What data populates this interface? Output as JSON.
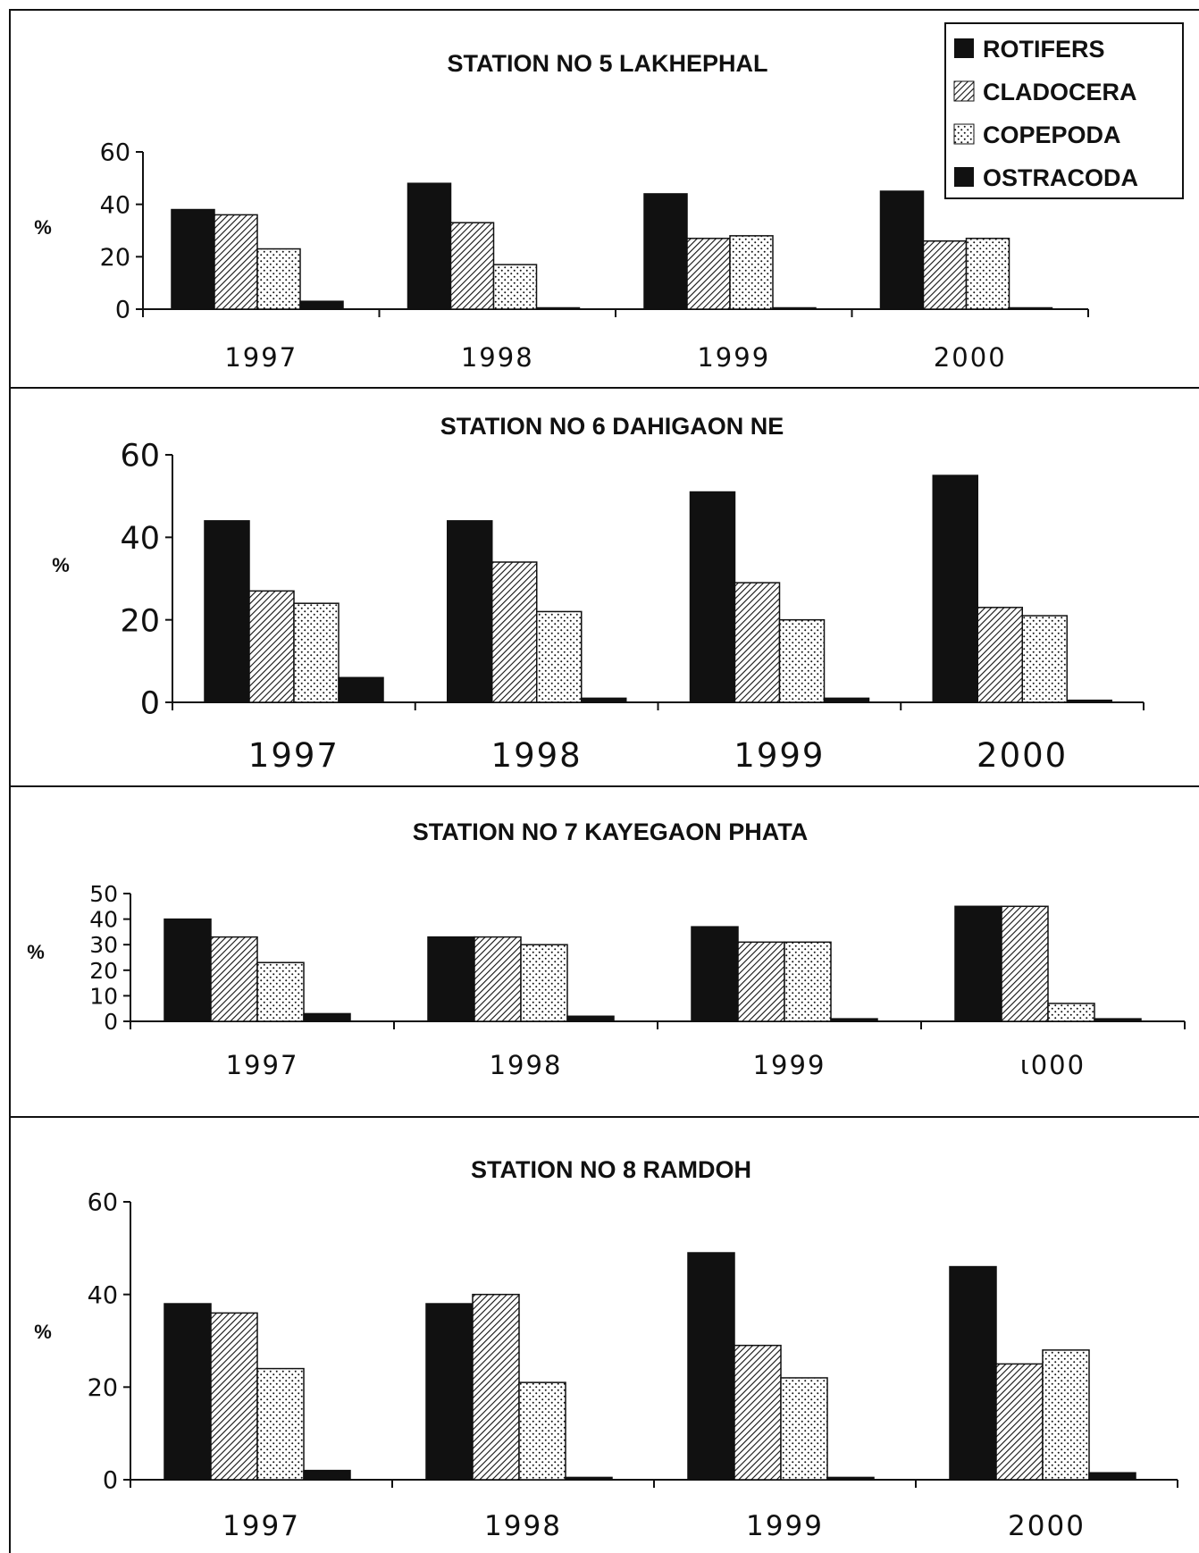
{
  "colors": {
    "ink": "#111111",
    "background": "#ffffff"
  },
  "legend": {
    "placement": "top-right",
    "items": [
      {
        "label": "ROTIFERS",
        "pattern": "solid"
      },
      {
        "label": "CLADOCERA",
        "pattern": "hatch"
      },
      {
        "label": "COPEPODA",
        "pattern": "dots"
      },
      {
        "label": "OSTRACODA",
        "pattern": "solid"
      }
    ]
  },
  "chart_data": [
    {
      "type": "bar",
      "title": "STATION NO 5 LAKHEPHAL",
      "ylabel": "%",
      "categories": [
        "1997",
        "1998",
        "1999",
        "2000"
      ],
      "ylim": [
        0,
        60
      ],
      "yticks": [
        "0",
        "20",
        "40",
        "60"
      ],
      "series": [
        {
          "name": "ROTIFERS",
          "values": [
            38,
            48,
            44,
            45
          ]
        },
        {
          "name": "CLADOCERA",
          "values": [
            36,
            33,
            27,
            26
          ]
        },
        {
          "name": "COPEPODA",
          "values": [
            23,
            17,
            28,
            27
          ]
        },
        {
          "name": "OSTRACODA",
          "values": [
            3,
            0.5,
            0,
            0.5
          ]
        }
      ]
    },
    {
      "type": "bar",
      "title": "STATION NO 6 DAHIGAON NE",
      "ylabel": "%",
      "categories": [
        "1997",
        "1998",
        "1999",
        "2000"
      ],
      "ylim": [
        0,
        60
      ],
      "yticks": [
        "0",
        "20",
        "40",
        "60"
      ],
      "series": [
        {
          "name": "ROTIFERS",
          "values": [
            44,
            44,
            51,
            55
          ]
        },
        {
          "name": "CLADOCERA",
          "values": [
            27,
            34,
            29,
            23
          ]
        },
        {
          "name": "COPEPODA",
          "values": [
            24,
            22,
            20,
            21
          ]
        },
        {
          "name": "OSTRACODA",
          "values": [
            6,
            1,
            1,
            0.5
          ]
        }
      ]
    },
    {
      "type": "bar",
      "title": "STATION NO 7 KAYEGAON PHATA",
      "ylabel": "%",
      "categories": [
        "1997",
        "1998",
        "1999",
        "ι000"
      ],
      "ylim": [
        0,
        50
      ],
      "yticks": [
        "0",
        "10",
        "20",
        "30",
        "40",
        "50"
      ],
      "series": [
        {
          "name": "ROTIFERS",
          "values": [
            40,
            33,
            37,
            45
          ]
        },
        {
          "name": "CLADOCERA",
          "values": [
            33,
            33,
            31,
            45
          ]
        },
        {
          "name": "COPEPODA",
          "values": [
            23,
            30,
            31,
            7
          ]
        },
        {
          "name": "OSTRACODA",
          "values": [
            3,
            2,
            1,
            1
          ]
        }
      ]
    },
    {
      "type": "bar",
      "title": "STATION NO 8 RAMDOH",
      "ylabel": "%",
      "categories": [
        "1997",
        "1998",
        "1999",
        "2000"
      ],
      "ylim": [
        0,
        60
      ],
      "yticks": [
        "0",
        "20",
        "40",
        "60"
      ],
      "series": [
        {
          "name": "ROTIFERS",
          "values": [
            38,
            38,
            49,
            46
          ]
        },
        {
          "name": "CLADOCERA",
          "values": [
            36,
            40,
            29,
            25
          ]
        },
        {
          "name": "COPEPODA",
          "values": [
            24,
            21,
            22,
            28
          ]
        },
        {
          "name": "OSTRACODA",
          "values": [
            2,
            0.5,
            0.5,
            1.5
          ]
        }
      ]
    }
  ]
}
